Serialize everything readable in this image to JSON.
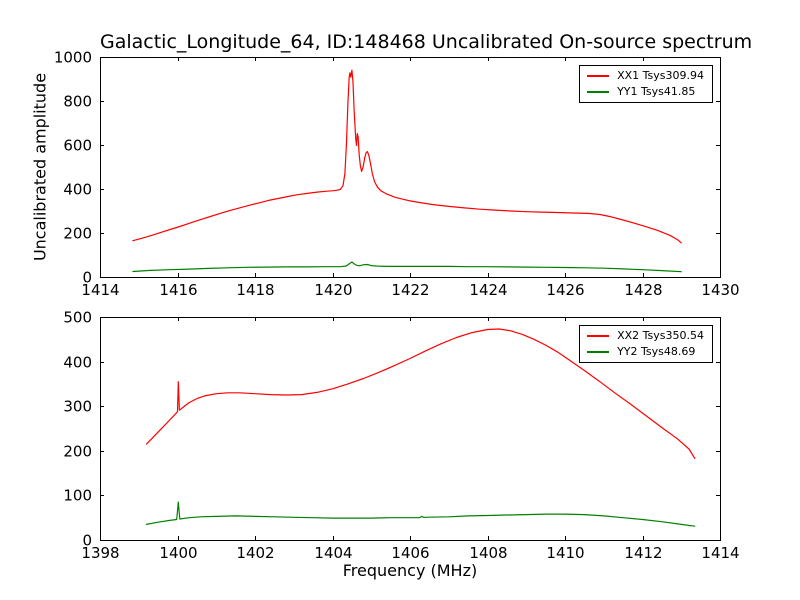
{
  "figure": {
    "title": "Galactic_Longitude_64, ID:148468 Uncalibrated On-source spectrum",
    "ylabel": "Uncalibrated amplitude",
    "xlabel": "Frequency (MHz)",
    "background": "#ffffff",
    "axis_color": "#000000"
  },
  "chart_data": [
    {
      "type": "line",
      "subplot": "top",
      "xlim": [
        1414,
        1430
      ],
      "ylim": [
        0,
        1000
      ],
      "x_ticks": [
        1414,
        1416,
        1418,
        1420,
        1422,
        1424,
        1426,
        1428,
        1430
      ],
      "y_ticks": [
        0,
        200,
        400,
        600,
        800,
        1000
      ],
      "grid": false,
      "legend_position": "upper right",
      "series": [
        {
          "name": "XX1 Tsys309.94",
          "color": "#ff0000",
          "points": [
            [
              1414.85,
              165
            ],
            [
              1415.1,
              177
            ],
            [
              1415.35,
              190
            ],
            [
              1415.6,
              204
            ],
            [
              1415.85,
              218
            ],
            [
              1416.1,
              232
            ],
            [
              1416.35,
              247
            ],
            [
              1416.6,
              261
            ],
            [
              1416.85,
              275
            ],
            [
              1417.1,
              289
            ],
            [
              1417.35,
              302
            ],
            [
              1417.6,
              314
            ],
            [
              1417.85,
              326
            ],
            [
              1418.1,
              337
            ],
            [
              1418.35,
              348
            ],
            [
              1418.6,
              357
            ],
            [
              1418.85,
              366
            ],
            [
              1419.1,
              374
            ],
            [
              1419.35,
              380
            ],
            [
              1419.6,
              386
            ],
            [
              1419.85,
              390
            ],
            [
              1420.0,
              392
            ],
            [
              1420.1,
              394
            ],
            [
              1420.2,
              398
            ],
            [
              1420.27,
              415
            ],
            [
              1420.32,
              470
            ],
            [
              1420.36,
              600
            ],
            [
              1420.4,
              800
            ],
            [
              1420.43,
              910
            ],
            [
              1420.45,
              928
            ],
            [
              1420.47,
              908
            ],
            [
              1420.5,
              940
            ],
            [
              1420.53,
              885
            ],
            [
              1420.56,
              750
            ],
            [
              1420.6,
              630
            ],
            [
              1420.62,
              598
            ],
            [
              1420.64,
              652
            ],
            [
              1420.66,
              638
            ],
            [
              1420.69,
              555
            ],
            [
              1420.72,
              505
            ],
            [
              1420.75,
              480
            ],
            [
              1420.79,
              500
            ],
            [
              1420.83,
              542
            ],
            [
              1420.87,
              566
            ],
            [
              1420.9,
              570
            ],
            [
              1420.94,
              552
            ],
            [
              1420.98,
              516
            ],
            [
              1421.03,
              468
            ],
            [
              1421.09,
              432
            ],
            [
              1421.16,
              408
            ],
            [
              1421.25,
              392
            ],
            [
              1421.4,
              377
            ],
            [
              1421.6,
              363
            ],
            [
              1421.8,
              354
            ],
            [
              1422.0,
              346
            ],
            [
              1422.3,
              337
            ],
            [
              1422.6,
              329
            ],
            [
              1423.0,
              321
            ],
            [
              1423.4,
              314
            ],
            [
              1423.8,
              308
            ],
            [
              1424.2,
              304
            ],
            [
              1424.6,
              300
            ],
            [
              1425.0,
              297
            ],
            [
              1425.4,
              295
            ],
            [
              1425.8,
              293
            ],
            [
              1426.2,
              291
            ],
            [
              1426.6,
              289
            ],
            [
              1426.9,
              284
            ],
            [
              1427.2,
              273
            ],
            [
              1427.5,
              259
            ],
            [
              1427.8,
              244
            ],
            [
              1428.1,
              228
            ],
            [
              1428.4,
              211
            ],
            [
              1428.7,
              190
            ],
            [
              1428.9,
              170
            ],
            [
              1429.0,
              155
            ]
          ]
        },
        {
          "name": "YY1 Tsys41.85",
          "color": "#008000",
          "points": [
            [
              1414.85,
              25
            ],
            [
              1415.3,
              30
            ],
            [
              1415.8,
              33
            ],
            [
              1416.3,
              36
            ],
            [
              1416.8,
              39
            ],
            [
              1417.3,
              42
            ],
            [
              1417.8,
              44
            ],
            [
              1418.3,
              45
            ],
            [
              1418.8,
              46
            ],
            [
              1419.3,
              46
            ],
            [
              1419.8,
              47
            ],
            [
              1420.2,
              47
            ],
            [
              1420.35,
              50
            ],
            [
              1420.45,
              62
            ],
            [
              1420.5,
              68
            ],
            [
              1420.55,
              61
            ],
            [
              1420.62,
              53
            ],
            [
              1420.7,
              51
            ],
            [
              1420.8,
              56
            ],
            [
              1420.9,
              57
            ],
            [
              1421.0,
              52
            ],
            [
              1421.2,
              49
            ],
            [
              1421.5,
              48
            ],
            [
              1422.0,
              48
            ],
            [
              1422.5,
              48
            ],
            [
              1423.0,
              48
            ],
            [
              1423.5,
              47
            ],
            [
              1424.0,
              47
            ],
            [
              1424.5,
              46
            ],
            [
              1425.0,
              45
            ],
            [
              1425.5,
              44
            ],
            [
              1426.0,
              43
            ],
            [
              1426.5,
              42
            ],
            [
              1427.0,
              40
            ],
            [
              1427.5,
              37
            ],
            [
              1428.0,
              33
            ],
            [
              1428.5,
              29
            ],
            [
              1429.0,
              24
            ]
          ]
        }
      ]
    },
    {
      "type": "line",
      "subplot": "bottom",
      "xlim": [
        1398,
        1414
      ],
      "ylim": [
        0,
        500
      ],
      "x_ticks": [
        1398,
        1400,
        1402,
        1404,
        1406,
        1408,
        1410,
        1412,
        1414
      ],
      "y_ticks": [
        0,
        100,
        200,
        300,
        400,
        500
      ],
      "grid": false,
      "legend_position": "upper right",
      "series": [
        {
          "name": "XX2 Tsys350.54",
          "color": "#ff0000",
          "points": [
            [
              1399.2,
              215
            ],
            [
              1399.4,
              233
            ],
            [
              1399.6,
              251
            ],
            [
              1399.8,
              269
            ],
            [
              1399.95,
              283
            ],
            [
              1400.0,
              288
            ],
            [
              1400.02,
              355
            ],
            [
              1400.05,
              291
            ],
            [
              1400.15,
              298
            ],
            [
              1400.3,
              308
            ],
            [
              1400.5,
              317
            ],
            [
              1400.7,
              323
            ],
            [
              1401.0,
              328
            ],
            [
              1401.3,
              330
            ],
            [
              1401.6,
              330
            ],
            [
              1402.0,
              328
            ],
            [
              1402.4,
              326
            ],
            [
              1402.8,
              325
            ],
            [
              1403.2,
              326
            ],
            [
              1403.6,
              331
            ],
            [
              1404.0,
              339
            ],
            [
              1404.4,
              350
            ],
            [
              1404.8,
              362
            ],
            [
              1405.2,
              376
            ],
            [
              1405.6,
              391
            ],
            [
              1406.0,
              407
            ],
            [
              1406.4,
              424
            ],
            [
              1406.8,
              440
            ],
            [
              1407.2,
              454
            ],
            [
              1407.6,
              465
            ],
            [
              1408.0,
              472
            ],
            [
              1408.3,
              473
            ],
            [
              1408.6,
              469
            ],
            [
              1408.9,
              461
            ],
            [
              1409.2,
              450
            ],
            [
              1409.5,
              437
            ],
            [
              1409.8,
              422
            ],
            [
              1410.1,
              404
            ],
            [
              1410.5,
              380
            ],
            [
              1410.9,
              355
            ],
            [
              1411.3,
              329
            ],
            [
              1411.7,
              304
            ],
            [
              1412.1,
              278
            ],
            [
              1412.5,
              252
            ],
            [
              1412.9,
              227
            ],
            [
              1413.2,
              204
            ],
            [
              1413.35,
              183
            ]
          ]
        },
        {
          "name": "YY2 Tsys48.69",
          "color": "#008000",
          "points": [
            [
              1399.2,
              35
            ],
            [
              1399.5,
              40
            ],
            [
              1399.8,
              44
            ],
            [
              1399.98,
              46
            ],
            [
              1400.02,
              85
            ],
            [
              1400.06,
              47
            ],
            [
              1400.3,
              50
            ],
            [
              1400.6,
              52
            ],
            [
              1401.0,
              53
            ],
            [
              1401.5,
              54
            ],
            [
              1402.0,
              53
            ],
            [
              1402.5,
              52
            ],
            [
              1403.0,
              51
            ],
            [
              1403.5,
              50
            ],
            [
              1404.0,
              49
            ],
            [
              1404.5,
              49
            ],
            [
              1405.0,
              49
            ],
            [
              1405.5,
              50
            ],
            [
              1406.0,
              50
            ],
            [
              1406.25,
              50
            ],
            [
              1406.3,
              53
            ],
            [
              1406.35,
              51
            ],
            [
              1407.0,
              52
            ],
            [
              1407.5,
              54
            ],
            [
              1408.0,
              55
            ],
            [
              1408.5,
              56
            ],
            [
              1409.0,
              57
            ],
            [
              1409.5,
              58
            ],
            [
              1410.0,
              58
            ],
            [
              1410.5,
              57
            ],
            [
              1411.0,
              54
            ],
            [
              1411.5,
              50
            ],
            [
              1412.0,
              46
            ],
            [
              1412.5,
              41
            ],
            [
              1413.0,
              35
            ],
            [
              1413.35,
              31
            ]
          ]
        }
      ]
    }
  ]
}
